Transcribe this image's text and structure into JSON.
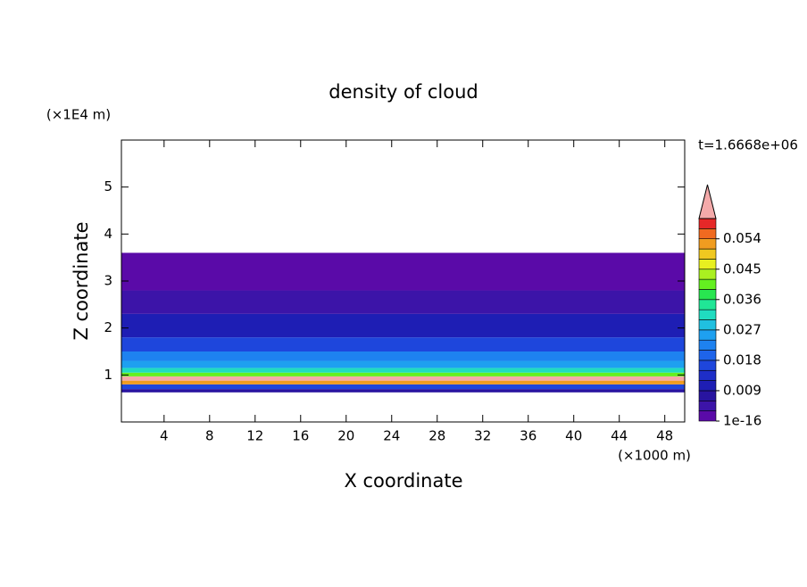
{
  "chart_data": {
    "type": "contour",
    "title": "density of cloud",
    "time_label": "t=1.6668e+06",
    "x_label": "X coordinate",
    "x_unit": "(×1000 m)",
    "y_label": "Z coordinate",
    "y_unit": "(×1E4 m)",
    "xlim": [
      0.25,
      49.75
    ],
    "xticks": [
      4,
      8,
      12,
      16,
      20,
      24,
      28,
      32,
      36,
      40,
      44,
      48
    ],
    "ylim": [
      0,
      6
    ],
    "yticks": [
      1,
      2,
      3,
      4,
      5
    ],
    "y_bins": [
      0.63,
      0.7,
      0.8,
      0.88,
      0.97,
      1.05,
      1.15,
      1.3,
      1.5,
      1.8,
      2.3,
      2.8,
      3.6
    ],
    "values": [
      0.008,
      0.016,
      0.052,
      0.061,
      0.041,
      0.032,
      0.026,
      0.022,
      0.016,
      0.011,
      0.005,
      0.002
    ],
    "levels": [
      1e-16,
      0.003,
      0.006,
      0.009,
      0.012,
      0.015,
      0.018,
      0.021,
      0.024,
      0.027,
      0.03,
      0.033,
      0.036,
      0.039,
      0.042,
      0.045,
      0.048,
      0.051,
      0.054,
      0.057,
      0.06
    ],
    "colors": [
      "#5a0aa8",
      "#3c14a8",
      "#2814a0",
      "#1e1eb4",
      "#1e2ec8",
      "#1e46dc",
      "#1e64ea",
      "#1e82f0",
      "#1ea0f0",
      "#20c0e0",
      "#20dcc0",
      "#20e696",
      "#28e650",
      "#64f020",
      "#aaf020",
      "#e8f020",
      "#f0c820",
      "#f09c20",
      "#f06a20",
      "#e62828"
    ],
    "overflow_color": "#f4aaaa",
    "colorbar_ticks": [
      1e-16,
      0.009,
      0.018,
      0.027,
      0.036,
      0.045,
      0.054
    ]
  }
}
